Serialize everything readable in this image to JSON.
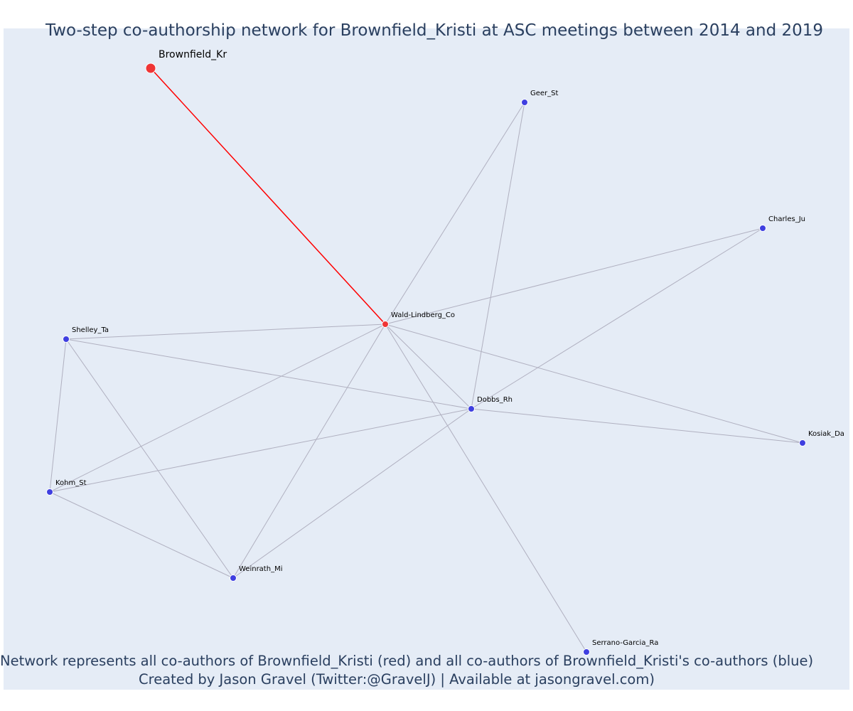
{
  "title": "Two-step co-authorship network for Brownfield_Kristi at ASC meetings between 2014 and 2019",
  "footer": {
    "line1": "Network represents all co-authors of Brownfield_Kristi (red) and all co-authors of Brownfield_Kristi's co-authors (blue)",
    "line2": "Created by Jason Gravel (Twitter:@GravelJ) | Available at jasongravel.com)"
  },
  "colors": {
    "background": "#e5ecf6",
    "title_text": "#2a3f5f",
    "first_degree_node": "#ef3535",
    "second_degree_node": "#3f3fe0",
    "focal_edge": "#ff0000",
    "other_edge": "#b0b0c0"
  },
  "network": {
    "nodes": [
      {
        "id": "Brownfield_Kr",
        "label": "Brownfield_Kr",
        "group": "focal"
      },
      {
        "id": "Wald-Lindberg_Co",
        "label": "Wald-Lindberg_Co",
        "group": "first-degree"
      },
      {
        "id": "Geer_St",
        "label": "Geer_St",
        "group": "second-degree"
      },
      {
        "id": "Charles_Ju",
        "label": "Charles_Ju",
        "group": "second-degree"
      },
      {
        "id": "Shelley_Ta",
        "label": "Shelley_Ta",
        "group": "second-degree"
      },
      {
        "id": "Dobbs_Rh",
        "label": "Dobbs_Rh",
        "group": "second-degree"
      },
      {
        "id": "Kosiak_Da",
        "label": "Kosiak_Da",
        "group": "second-degree"
      },
      {
        "id": "Kohm_St",
        "label": "Kohm_St",
        "group": "second-degree"
      },
      {
        "id": "Weinrath_Mi",
        "label": "Weinrath_Mi",
        "group": "second-degree"
      },
      {
        "id": "Serrano-Garcia_Ra",
        "label": "Serrano-Garcia_Ra",
        "group": "second-degree"
      }
    ],
    "edges": [
      {
        "source": "Brownfield_Kr",
        "target": "Wald-Lindberg_Co",
        "focal": true
      },
      {
        "source": "Wald-Lindberg_Co",
        "target": "Geer_St"
      },
      {
        "source": "Wald-Lindberg_Co",
        "target": "Charles_Ju"
      },
      {
        "source": "Wald-Lindberg_Co",
        "target": "Shelley_Ta"
      },
      {
        "source": "Wald-Lindberg_Co",
        "target": "Dobbs_Rh"
      },
      {
        "source": "Wald-Lindberg_Co",
        "target": "Kosiak_Da"
      },
      {
        "source": "Wald-Lindberg_Co",
        "target": "Kohm_St"
      },
      {
        "source": "Wald-Lindberg_Co",
        "target": "Weinrath_Mi"
      },
      {
        "source": "Wald-Lindberg_Co",
        "target": "Serrano-Garcia_Ra"
      },
      {
        "source": "Geer_St",
        "target": "Dobbs_Rh"
      },
      {
        "source": "Charles_Ju",
        "target": "Dobbs_Rh"
      },
      {
        "source": "Shelley_Ta",
        "target": "Dobbs_Rh"
      },
      {
        "source": "Shelley_Ta",
        "target": "Kohm_St"
      },
      {
        "source": "Shelley_Ta",
        "target": "Weinrath_Mi"
      },
      {
        "source": "Dobbs_Rh",
        "target": "Kosiak_Da"
      },
      {
        "source": "Dobbs_Rh",
        "target": "Kohm_St"
      },
      {
        "source": "Dobbs_Rh",
        "target": "Weinrath_Mi"
      },
      {
        "source": "Kohm_St",
        "target": "Weinrath_Mi"
      }
    ]
  }
}
